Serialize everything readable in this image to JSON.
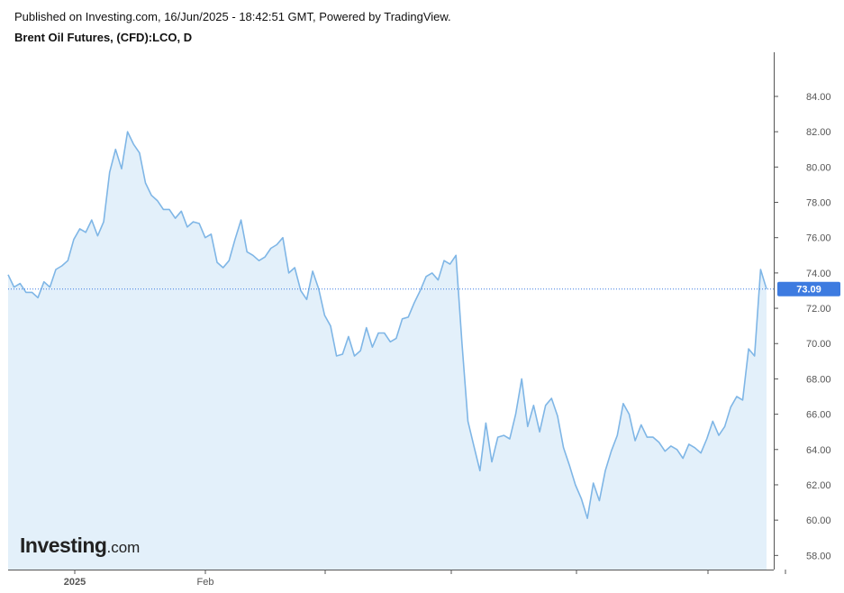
{
  "header": {
    "published": "Published on Investing.com, 16/Jun/2025 - 18:42:51 GMT, Powered by TradingView.",
    "title": "Brent Oil Futures, (CFD):LCO, D"
  },
  "logo": {
    "brand": "Investing",
    "domain": ".com"
  },
  "colors": {
    "line": "#7fb6e6",
    "fill": "#e3f0fa",
    "last_price_badge": "#3d7be0",
    "price_line": "#3d7be0",
    "axis": "#555555"
  },
  "chart_data": {
    "type": "area",
    "title": "Brent Oil Futures, (CFD):LCO, D",
    "ylim": [
      57.2,
      86.5
    ],
    "y_ticks": [
      "58.00",
      "60.00",
      "62.00",
      "64.00",
      "66.00",
      "68.00",
      "70.00",
      "72.00",
      "74.00",
      "76.00",
      "78.00",
      "80.00",
      "82.00",
      "84.00"
    ],
    "x_tick_labels": [
      "2025",
      "Feb"
    ],
    "last_price": "73.09",
    "grid": false,
    "series": [
      {
        "values": [
          73.9,
          73.2,
          73.4,
          72.9,
          72.9,
          72.6,
          73.5,
          73.2,
          74.2,
          74.4,
          74.7,
          75.9,
          76.5,
          76.3,
          77.0,
          76.1,
          76.9,
          79.7,
          81.0,
          79.9,
          82.0,
          81.3,
          80.8,
          79.1,
          78.4,
          78.1,
          77.6,
          77.6,
          77.1,
          77.5,
          76.6,
          76.9,
          76.8,
          76.0,
          76.2,
          74.6,
          74.3,
          74.7,
          75.9,
          77.0,
          75.2,
          75.0,
          74.7,
          74.9,
          75.4,
          75.6,
          76.0,
          74.0,
          74.3,
          73.0,
          72.5,
          74.1,
          73.1,
          71.6,
          71.0,
          69.3,
          69.4,
          70.4,
          69.3,
          69.6,
          70.9,
          69.8,
          70.6,
          70.6,
          70.1,
          70.3,
          71.4,
          71.5,
          72.3,
          73.0,
          73.8,
          74.0,
          73.6,
          74.7,
          74.5,
          75.0,
          70.0,
          65.6,
          64.2,
          62.8,
          65.5,
          63.3,
          64.7,
          64.8,
          64.6,
          66.0,
          68.0,
          65.3,
          66.5,
          65.0,
          66.5,
          66.9,
          65.9,
          64.1,
          63.1,
          62.0,
          61.2,
          60.1,
          62.1,
          61.1,
          62.8,
          63.9,
          64.8,
          66.6,
          66.0,
          64.5,
          65.4,
          64.7,
          64.7,
          64.4,
          63.9,
          64.2,
          64.0,
          63.5,
          64.3,
          64.1,
          63.8,
          64.6,
          65.6,
          64.8,
          65.3,
          66.4,
          67.0,
          66.8,
          69.7,
          69.3,
          74.2,
          73.09
        ]
      }
    ]
  }
}
